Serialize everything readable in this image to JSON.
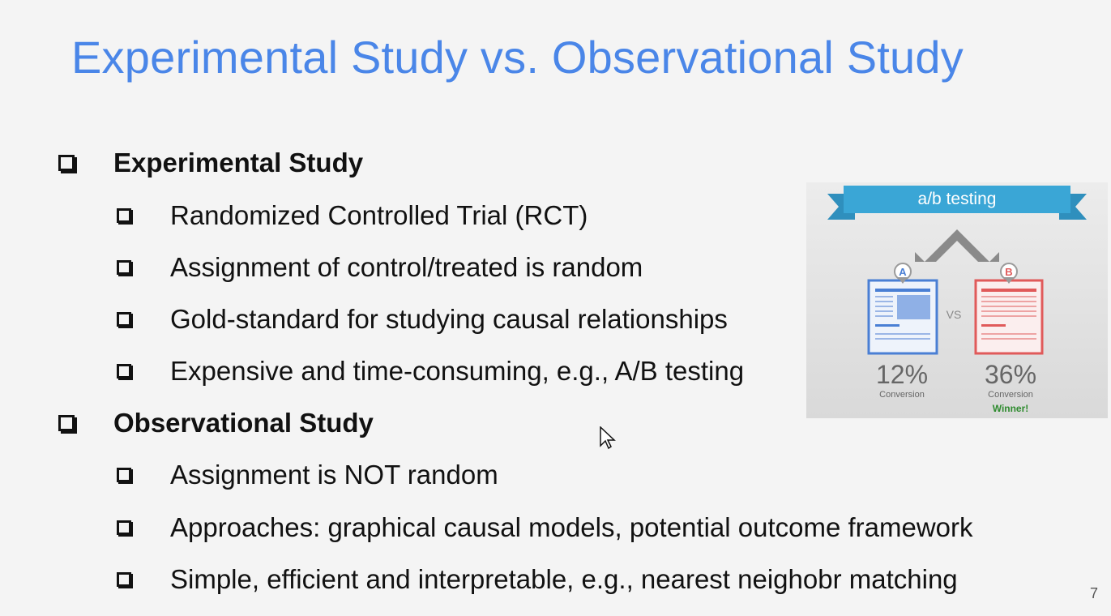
{
  "slide": {
    "title": "Experimental Study vs. Observational Study",
    "page_number": "7",
    "sections": [
      {
        "heading": "Experimental Study",
        "items": [
          "Randomized Controlled Trial (RCT)",
          "Assignment of control/treated is random",
          "Gold-standard for studying causal relationships",
          "Expensive and time-consuming, e.g., A/B testing"
        ]
      },
      {
        "heading": "Observational Study",
        "items": [
          "Assignment is NOT random",
          "Approaches: graphical causal models, potential outcome framework",
          "Simple, efficient and interpretable, e.g., nearest neighobr matching"
        ]
      }
    ]
  },
  "ab_image": {
    "banner": "a/b testing",
    "variant_a": {
      "marker": "A",
      "rate": "12%",
      "label": "Conversion"
    },
    "variant_b": {
      "marker": "B",
      "rate": "36%",
      "label": "Conversion",
      "badge": "Winner!"
    },
    "vs": "VS",
    "colors": {
      "banner": "#3aa6d6",
      "a": "#4a7fd4",
      "b": "#e05a5a",
      "winner": "#2e8b2e"
    }
  }
}
